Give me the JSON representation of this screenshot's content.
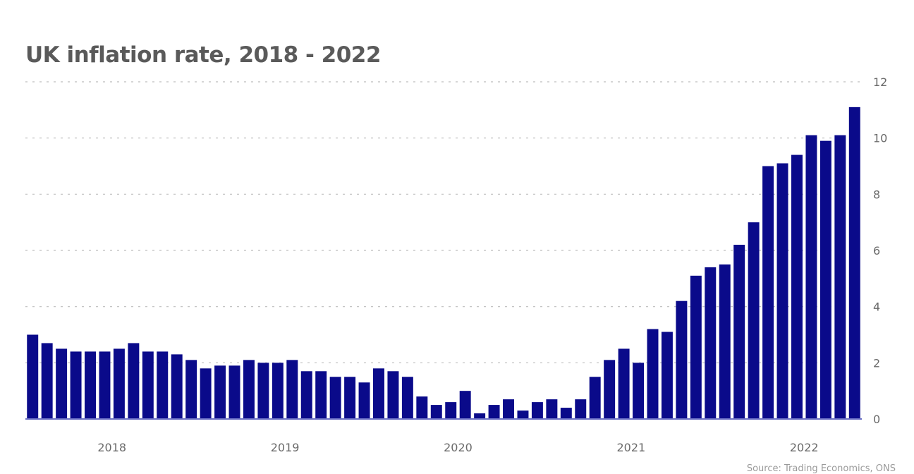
{
  "chart_data": {
    "type": "bar",
    "title": "UK inflation rate, 2018 - 2022",
    "xlabel": "",
    "ylabel": "",
    "ylim": [
      0,
      12
    ],
    "yticks": [
      0,
      2,
      4,
      6,
      8,
      10,
      12
    ],
    "y_axis_position": "right",
    "grid": "horizontal dashed",
    "categories": [
      "2018-01",
      "2018-02",
      "2018-03",
      "2018-04",
      "2018-05",
      "2018-06",
      "2018-07",
      "2018-08",
      "2018-09",
      "2018-10",
      "2018-11",
      "2018-12",
      "2019-01",
      "2019-02",
      "2019-03",
      "2019-04",
      "2019-05",
      "2019-06",
      "2019-07",
      "2019-08",
      "2019-09",
      "2019-10",
      "2019-11",
      "2019-12",
      "2020-01",
      "2020-02",
      "2020-03",
      "2020-04",
      "2020-05",
      "2020-06",
      "2020-07",
      "2020-08",
      "2020-09",
      "2020-10",
      "2020-11",
      "2020-12",
      "2021-01",
      "2021-02",
      "2021-03",
      "2021-04",
      "2021-05",
      "2021-06",
      "2021-07",
      "2021-08",
      "2021-09",
      "2021-10",
      "2021-11",
      "2021-12",
      "2022-01",
      "2022-02",
      "2022-03",
      "2022-04",
      "2022-05",
      "2022-06",
      "2022-07",
      "2022-08",
      "2022-09",
      "2022-10"
    ],
    "values": [
      3.0,
      2.7,
      2.5,
      2.4,
      2.4,
      2.4,
      2.5,
      2.7,
      2.4,
      2.4,
      2.3,
      2.1,
      1.8,
      1.9,
      1.9,
      2.1,
      2.0,
      2.0,
      2.1,
      1.7,
      1.7,
      1.5,
      1.5,
      1.3,
      1.8,
      1.7,
      1.5,
      0.8,
      0.5,
      0.6,
      1.0,
      0.2,
      0.5,
      0.7,
      0.3,
      0.6,
      0.7,
      0.4,
      0.7,
      1.5,
      2.1,
      2.5,
      2.0,
      3.2,
      3.1,
      4.2,
      5.1,
      5.4,
      5.5,
      6.2,
      7.0,
      9.0,
      9.1,
      9.4,
      10.1,
      9.9,
      10.1,
      11.1
    ],
    "x_labels": [
      {
        "label": "2018",
        "index": 5.5
      },
      {
        "label": "2019",
        "index": 17.5
      },
      {
        "label": "2020",
        "index": 29.5
      },
      {
        "label": "2021",
        "index": 41.5
      },
      {
        "label": "2022",
        "index": 53.5
      }
    ]
  },
  "bar_color": "#0a0a8a",
  "baseline_color": "#6a6fc4",
  "source_note": "Source: Trading Economics, ONS"
}
